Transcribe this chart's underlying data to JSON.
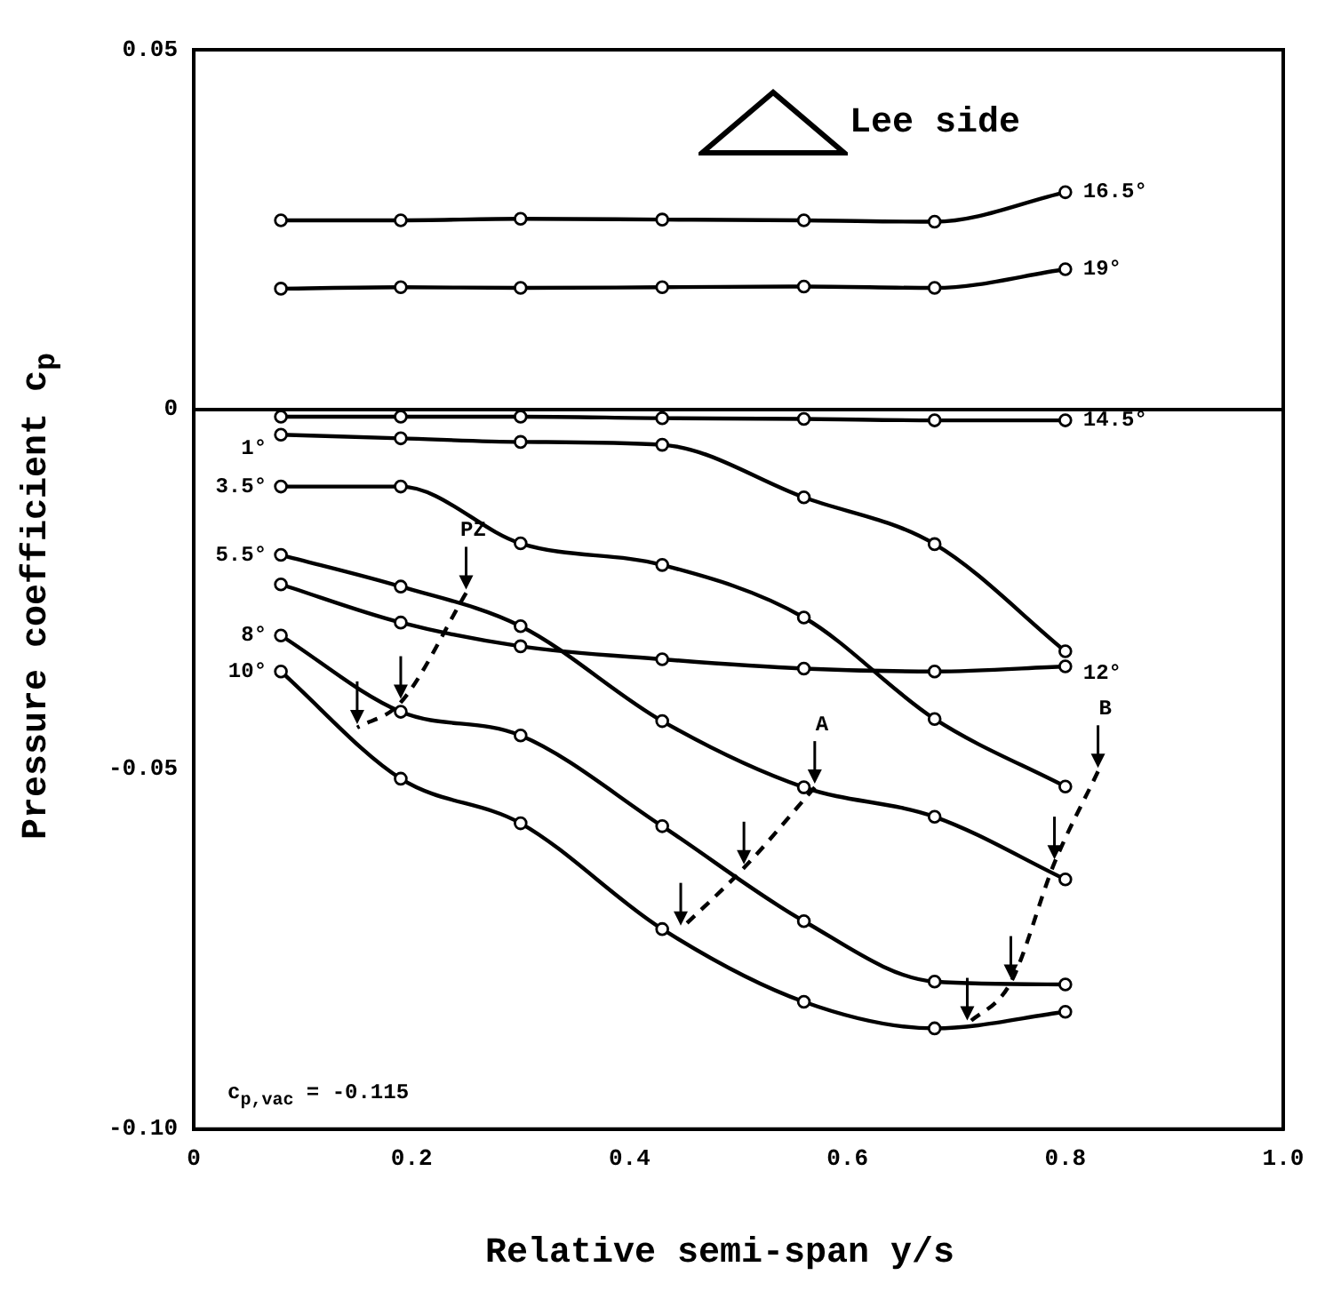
{
  "chart_data": {
    "type": "line",
    "xlabel": "Relative semi-span y/s",
    "ylabel": "Pressure coefficient c$_{p}$",
    "annotations": [
      "Lee side",
      "c$_{p,vac}$ = -0.115"
    ],
    "x": [
      0.08,
      0.19,
      0.3,
      0.43,
      0.56,
      0.68,
      0.8
    ],
    "series": [
      {
        "name": "16.5°",
        "color": "#000000",
        "values": [
          0.0263,
          0.0263,
          0.0265,
          0.0264,
          0.0263,
          0.0261,
          0.0302
        ]
      },
      {
        "name": "19°",
        "color": "#000000",
        "values": [
          0.0168,
          0.017,
          0.0169,
          0.017,
          0.0171,
          0.0169,
          0.0195
        ]
      },
      {
        "name": "14.5°",
        "color": "#000000",
        "values": [
          -0.001,
          -0.001,
          -0.001,
          -0.0012,
          -0.0013,
          -0.0015,
          -0.0015
        ]
      },
      {
        "name": "12°",
        "color": "#000000",
        "values": [
          -0.0243,
          -0.0296,
          -0.0329,
          -0.0347,
          -0.036,
          -0.0364,
          -0.0357
        ]
      },
      {
        "name": "1°",
        "color": "#000000",
        "values": [
          -0.0035,
          -0.004,
          -0.0045,
          -0.0049,
          -0.0122,
          -0.0187,
          -0.0336
        ]
      },
      {
        "name": "3.5°",
        "color": "#000000",
        "values": [
          -0.0107,
          -0.0107,
          -0.0186,
          -0.0216,
          -0.0289,
          -0.043,
          -0.0524
        ]
      },
      {
        "name": "5.5°",
        "color": "#000000",
        "values": [
          -0.0202,
          -0.0246,
          -0.0301,
          -0.0433,
          -0.0525,
          -0.0566,
          -0.0653
        ]
      },
      {
        "name": "8°",
        "color": "#000000",
        "values": [
          -0.0314,
          -0.042,
          -0.0453,
          -0.0579,
          -0.0711,
          -0.0795,
          -0.0799
        ]
      },
      {
        "name": "10°",
        "color": "#000000",
        "values": [
          -0.0364,
          -0.0513,
          -0.0575,
          -0.0722,
          -0.0823,
          -0.086,
          -0.0837
        ]
      },
      {
        "name": "PZ",
        "color": "#000000",
        "line_style": "dashed",
        "marker": "none",
        "x": [
          0.25,
          0.19,
          0.15
        ],
        "values": [
          -0.0255,
          -0.0407,
          -0.0442
        ]
      },
      {
        "name": "A",
        "color": "#000000",
        "line_style": "dashed",
        "marker": "none",
        "x": [
          0.57,
          0.505,
          0.447
        ],
        "values": [
          -0.0525,
          -0.0637,
          -0.0722
        ]
      },
      {
        "name": "B",
        "color": "#000000",
        "line_style": "dashed",
        "marker": "none",
        "x": [
          0.83,
          0.79,
          0.75,
          0.71
        ],
        "values": [
          -0.0503,
          -0.063,
          -0.0796,
          -0.0854
        ]
      }
    ],
    "xlim": [
      0,
      1
    ],
    "xticks": [
      0,
      0.2,
      0.4,
      0.6,
      0.8,
      {
        "value": 1,
        "label": "1.0"
      }
    ],
    "ylim": [
      -0.1,
      0.05
    ],
    "yticks": [
      {
        "value": -0.1,
        "label": "-0.10"
      },
      -0.05,
      0,
      0.05
    ],
    "ref_lines": [
      {
        "axis": "y",
        "value": 0,
        "color": "#000000"
      }
    ],
    "grid": false,
    "legend": false,
    "marker": "circle",
    "line_style": "solid"
  }
}
